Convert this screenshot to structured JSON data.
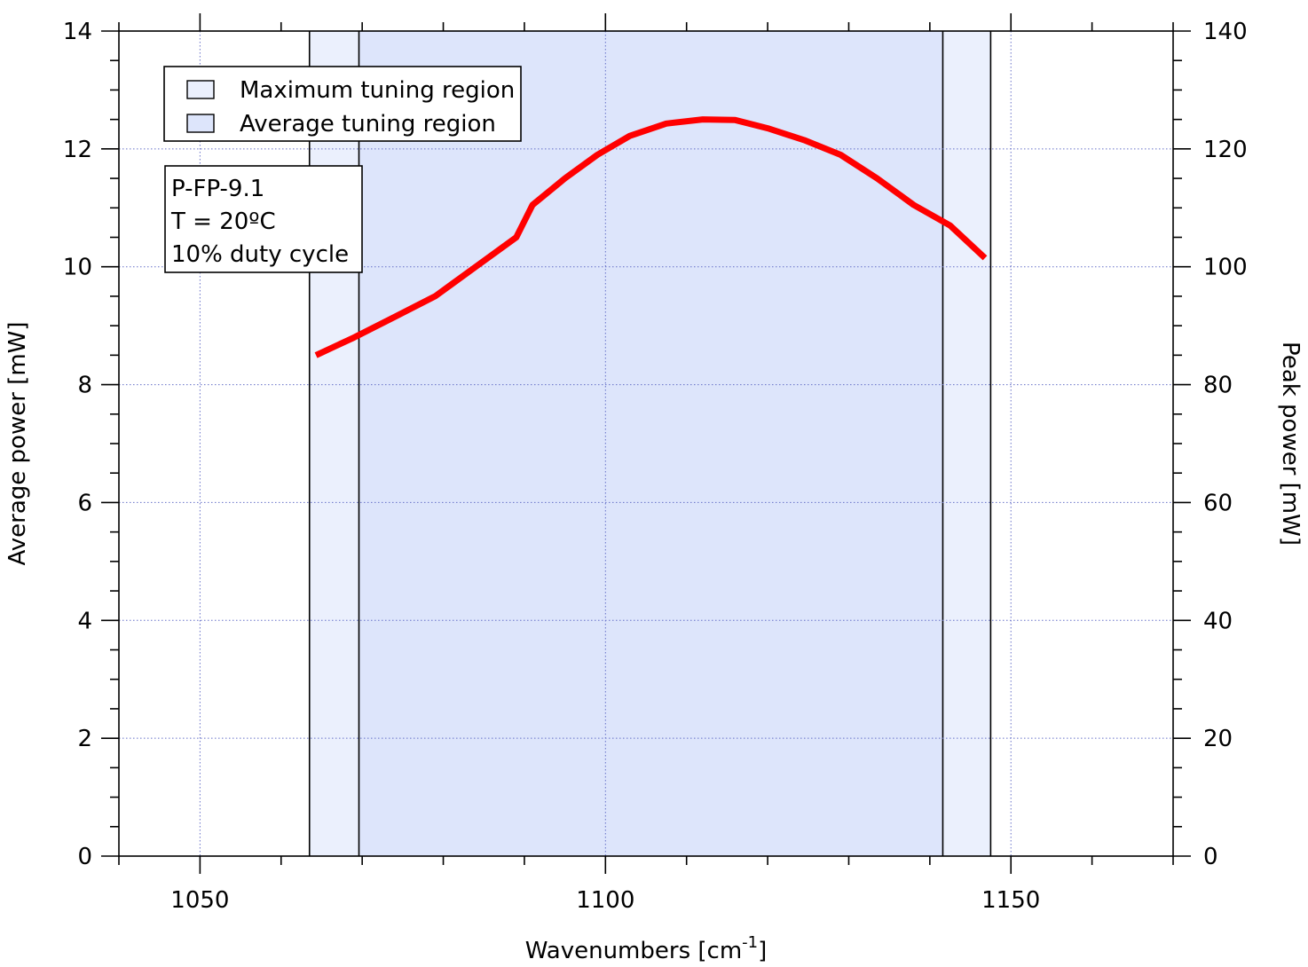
{
  "chart_data": {
    "type": "line",
    "title": "",
    "xlabel": "Wavenumbers [cm",
    "xlabel_superscript": "-1",
    "xlabel_suffix": "]",
    "ylabel_left": "Average power [mW]",
    "ylabel_right": "Peak power [mW]",
    "xlim": [
      1040,
      1170
    ],
    "ylim_left": [
      0,
      14
    ],
    "ylim_right": [
      0,
      140
    ],
    "x_ticks": [
      1050,
      1100,
      1150
    ],
    "y_ticks_left": [
      0,
      2,
      4,
      6,
      8,
      10,
      12,
      14
    ],
    "y_ticks_right": [
      0,
      20,
      40,
      60,
      80,
      100,
      120,
      140
    ],
    "grid": true,
    "regions": [
      {
        "name": "Maximum tuning region",
        "x_start": 1063.5,
        "x_end": 1147.5,
        "color": "#ebf0fd"
      },
      {
        "name": "Average tuning region",
        "x_start": 1069.6,
        "x_end": 1141.6,
        "color": "#dde5fb"
      }
    ],
    "legend": {
      "placement": "top-left",
      "entries": [
        "Maximum tuning region",
        "Average tuning region"
      ]
    },
    "annotation": {
      "lines": [
        "P-FP-9.1",
        "T = 20ºC",
        "10% duty cycle"
      ]
    },
    "series": [
      {
        "color": "#ff0000",
        "x": [
          1064.3,
          1069.0,
          1074.0,
          1079.0,
          1084.0,
          1089.0,
          1091.0,
          1095.0,
          1099.0,
          1103.0,
          1107.5,
          1112.0,
          1116.0,
          1120.0,
          1124.5,
          1129.0,
          1133.5,
          1138.0,
          1142.5,
          1146.8
        ],
        "y": [
          8.5,
          8.8,
          9.15,
          9.5,
          10.0,
          10.5,
          11.05,
          11.5,
          11.9,
          12.22,
          12.43,
          12.5,
          12.49,
          12.35,
          12.15,
          11.9,
          11.5,
          11.05,
          10.7,
          10.15
        ]
      }
    ]
  }
}
